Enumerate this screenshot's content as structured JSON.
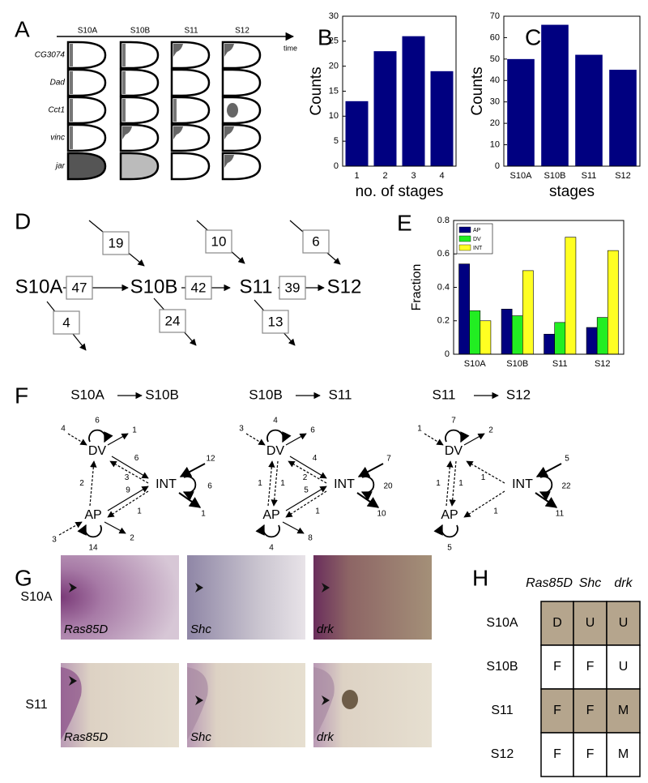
{
  "panel_labels": [
    "A",
    "B",
    "C",
    "D",
    "E",
    "F",
    "G",
    "H"
  ],
  "panel_a": {
    "stages": [
      "S10A",
      "S10B",
      "S11",
      "S12"
    ],
    "time_label": "time",
    "genes": [
      "CG3074",
      "Dad",
      "Cct1",
      "vinc",
      "jar"
    ]
  },
  "chart_data": [
    {
      "type": "bar",
      "categories": [
        "1",
        "2",
        "3",
        "4"
      ],
      "values": [
        13,
        23,
        26,
        19
      ],
      "color": "#000080",
      "ylim": [
        0,
        30
      ],
      "yticks": [
        0,
        5,
        10,
        15,
        20,
        25,
        30
      ],
      "xlabel": "no. of stages",
      "ylabel": "Counts"
    },
    {
      "type": "bar",
      "categories": [
        "S10A",
        "S10B",
        "S11",
        "S12"
      ],
      "values": [
        50,
        66,
        52,
        45
      ],
      "color": "#000080",
      "ylim": [
        0,
        70
      ],
      "yticks": [
        0,
        10,
        20,
        30,
        40,
        50,
        60,
        70
      ],
      "xlabel": "stages",
      "ylabel": "Counts"
    },
    {
      "type": "bar",
      "categories": [
        "S10A",
        "S10B",
        "S11",
        "S12"
      ],
      "series": [
        {
          "name": "AP",
          "color": "#000080",
          "values": [
            0.54,
            0.27,
            0.12,
            0.16
          ]
        },
        {
          "name": "DV",
          "color": "#22ee22",
          "values": [
            0.26,
            0.23,
            0.19,
            0.22
          ]
        },
        {
          "name": "INT",
          "color": "#ffff22",
          "values": [
            0.2,
            0.5,
            0.7,
            0.62
          ]
        }
      ],
      "ylim": [
        0,
        0.8
      ],
      "yticks": [
        0,
        0.2,
        0.4,
        0.6,
        0.8
      ],
      "ylabel": "Fraction",
      "legend": "upper left"
    }
  ],
  "panel_d": {
    "nodes": [
      "S10A",
      "S10B",
      "S11",
      "S12"
    ],
    "transitions": [
      47,
      42,
      39
    ],
    "incoming": [
      19,
      10,
      6
    ],
    "outgoing": [
      4,
      24,
      13
    ]
  },
  "panel_f": {
    "diagrams": [
      {
        "title": [
          "S10A",
          "S10B"
        ],
        "nodes": [
          "DV",
          "INT",
          "AP"
        ],
        "edges": {
          "dv_in": 4,
          "dv_self": 6,
          "dv_out": 1,
          "dv_int": 6,
          "int_dv": 3,
          "ap_dv": 2,
          "ap_int": 9,
          "int_ap": 1,
          "int_in": 12,
          "int_self": 6,
          "int_out": 1,
          "ap_in": 3,
          "ap_self": 14,
          "ap_out": 2
        }
      },
      {
        "title": [
          "S10B",
          "S11"
        ],
        "nodes": [
          "DV",
          "INT",
          "AP"
        ],
        "edges": {
          "dv_in": 3,
          "dv_self": 4,
          "dv_out": 6,
          "dv_int": 4,
          "int_dv": 2,
          "ap_dv": 1,
          "dv_ap": 1,
          "ap_int": 5,
          "int_ap": 1,
          "int_in": 7,
          "int_self": 20,
          "int_out": 10,
          "ap_self": 4,
          "ap_out": 8
        }
      },
      {
        "title": [
          "S11",
          "S12"
        ],
        "nodes": [
          "DV",
          "INT",
          "AP"
        ],
        "edges": {
          "dv_in": 1,
          "dv_self": 7,
          "dv_out": 2,
          "int_dv": 1,
          "ap_dv": 1,
          "dv_ap": 1,
          "int_ap": 1,
          "int_in": 5,
          "int_self": 22,
          "int_out": 11,
          "ap_self": 5
        }
      }
    ]
  },
  "panel_g": {
    "rows": [
      "S10A",
      "S11"
    ],
    "captions": [
      [
        "Ras85D",
        "Shc",
        "drk"
      ],
      [
        "Ras85D",
        "Shc",
        "drk"
      ]
    ]
  },
  "panel_h": {
    "header": [
      "Ras85D",
      "Shc",
      "drk"
    ],
    "rows": [
      [
        "S10A",
        "D",
        "U",
        "U"
      ],
      [
        "S10B",
        "F",
        "F",
        "U"
      ],
      [
        "S11",
        "F",
        "F",
        "M"
      ],
      [
        "S12",
        "F",
        "F",
        "M"
      ]
    ]
  }
}
